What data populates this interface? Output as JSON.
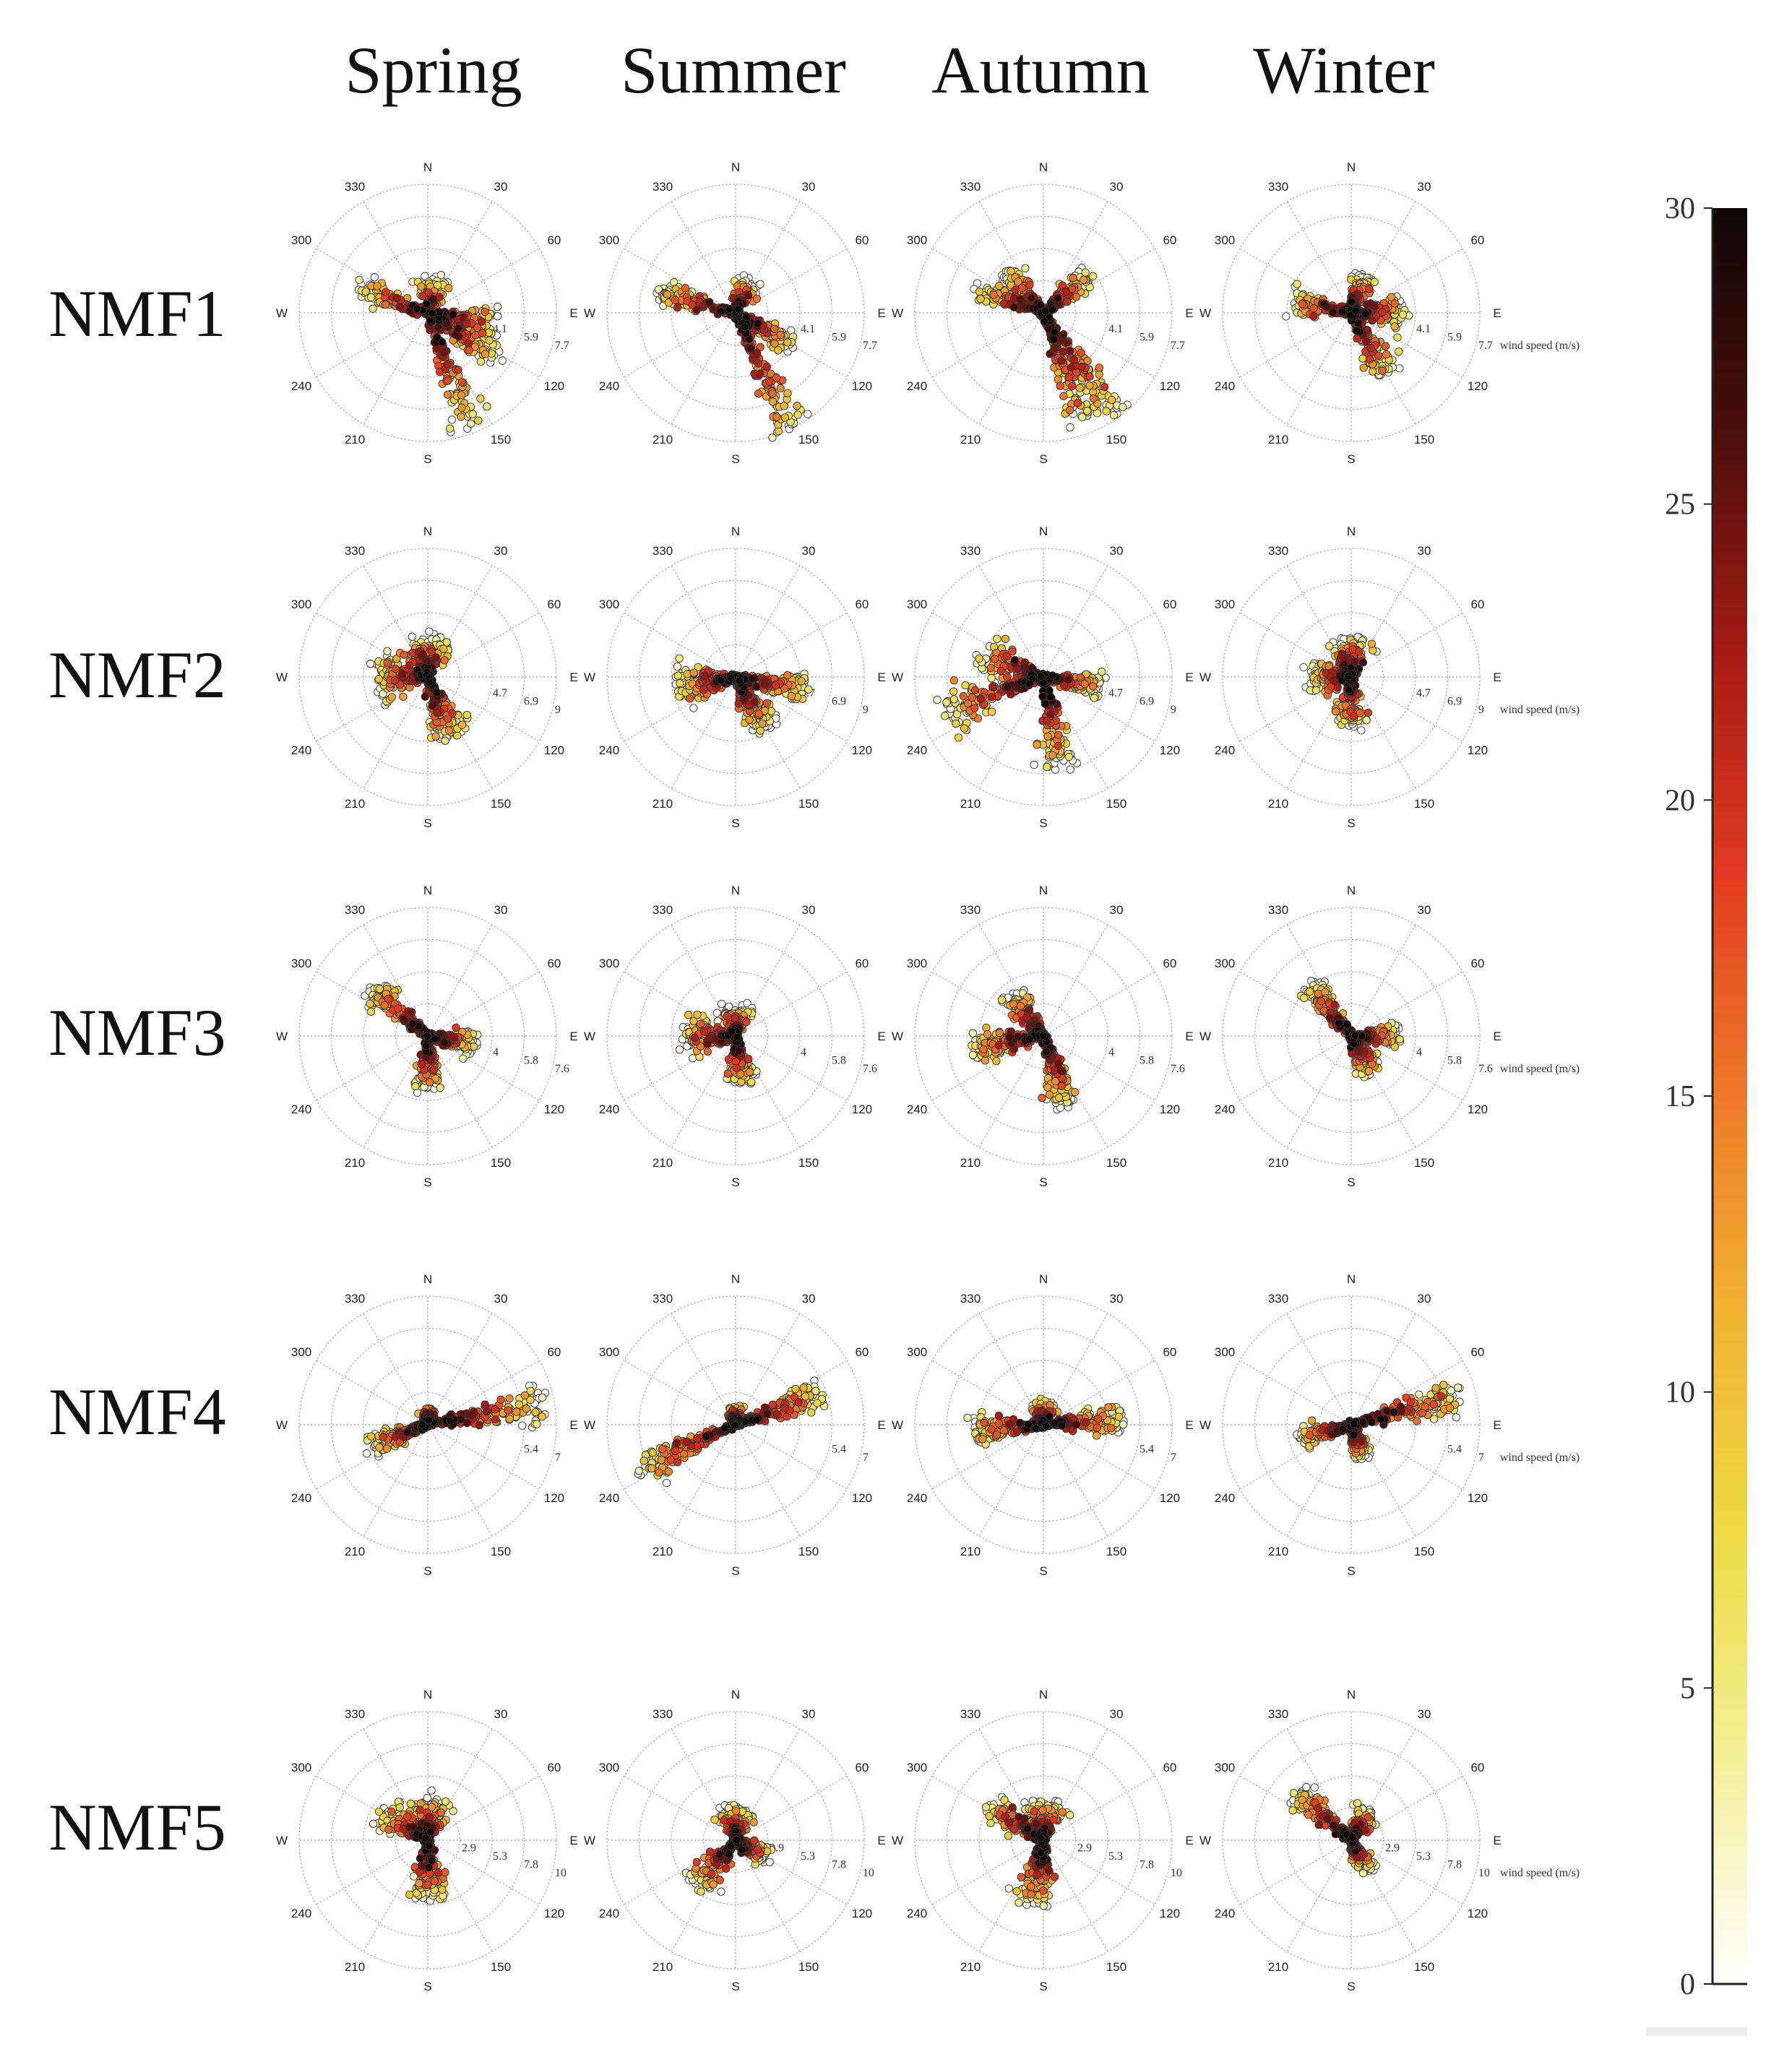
{
  "chart_data": {
    "type": "scatter",
    "subtype": "polar bivariate wind plots (concentration vs wind direction and speed)",
    "columns": [
      "Spring",
      "Summer",
      "Autumn",
      "Winter"
    ],
    "rows": [
      "NMF1",
      "NMF2",
      "NMF3",
      "NMF4",
      "NMF5"
    ],
    "direction_labels": [
      "N",
      "30",
      "60",
      "E",
      "120",
      "150",
      "S",
      "210",
      "240",
      "W",
      "300",
      "330"
    ],
    "wind_speed_unit": "wind speed (m/s)",
    "speed_rings": [
      [
        "4.1",
        "5.9",
        "7.7"
      ],
      [
        "4.7",
        "6.9",
        "9"
      ],
      [
        "4",
        "5.8",
        "7.6"
      ],
      [
        "5.4",
        "7"
      ],
      [
        "2.9",
        "5.3",
        "7.8",
        "10"
      ]
    ],
    "colorbar": {
      "min": 0,
      "max": 30,
      "ticks": [
        0,
        5,
        10,
        15,
        20,
        25,
        30
      ],
      "colors": [
        "#ffffff",
        "#f4f09a",
        "#eedc45",
        "#f0b430",
        "#ee7a28",
        "#e23a20",
        "#a61a14",
        "#4a0e0a",
        "#0e0705"
      ]
    },
    "lobes": [
      [
        [
          [
            100,
            0.55,
            0.18
          ],
          [
            120,
            0.62,
            0.2
          ],
          [
            160,
            0.95,
            0.12
          ],
          [
            290,
            0.55,
            0.16
          ],
          [
            10,
            0.25,
            0.35
          ]
        ],
        [
          [
            120,
            0.5,
            0.18
          ],
          [
            155,
            1.05,
            0.12
          ],
          [
            285,
            0.62,
            0.13
          ],
          [
            20,
            0.25,
            0.3
          ]
        ],
        [
          [
            145,
            0.95,
            0.13
          ],
          [
            160,
            0.9,
            0.12
          ],
          [
            290,
            0.55,
            0.14
          ],
          [
            50,
            0.45,
            0.18
          ],
          [
            320,
            0.4,
            0.2
          ]
        ],
        [
          [
            90,
            0.4,
            0.3
          ],
          [
            150,
            0.55,
            0.18
          ],
          [
            280,
            0.45,
            0.18
          ],
          [
            20,
            0.3,
            0.3
          ]
        ]
      ],
      [
        [
          [
            0,
            0.3,
            0.55
          ],
          [
            160,
            0.5,
            0.25
          ],
          [
            270,
            0.4,
            0.35
          ]
        ],
        [
          [
            100,
            0.55,
            0.18
          ],
          [
            150,
            0.45,
            0.22
          ],
          [
            260,
            0.45,
            0.3
          ]
        ],
        [
          [
            100,
            0.45,
            0.2
          ],
          [
            170,
            0.7,
            0.15
          ],
          [
            290,
            0.5,
            0.3
          ],
          [
            250,
            0.8,
            0.15
          ]
        ],
        [
          [
            0,
            0.3,
            0.5
          ],
          [
            180,
            0.35,
            0.25
          ],
          [
            270,
            0.3,
            0.35
          ]
        ]
      ],
      [
        [
          [
            310,
            0.55,
            0.15
          ],
          [
            100,
            0.35,
            0.2
          ],
          [
            180,
            0.4,
            0.22
          ]
        ],
        [
          [
            0,
            0.2,
            0.55
          ],
          [
            270,
            0.4,
            0.3
          ],
          [
            170,
            0.35,
            0.25
          ]
        ],
        [
          [
            320,
            0.4,
            0.22
          ],
          [
            160,
            0.55,
            0.18
          ],
          [
            260,
            0.55,
            0.2
          ]
        ],
        [
          [
            320,
            0.5,
            0.16
          ],
          [
            150,
            0.3,
            0.25
          ],
          [
            90,
            0.35,
            0.2
          ]
        ]
      ],
      [
        [
          [
            80,
            0.9,
            0.12
          ],
          [
            250,
            0.45,
            0.18
          ],
          [
            0,
            0.1,
            0.4
          ]
        ],
        [
          [
            70,
            0.7,
            0.13
          ],
          [
            245,
            0.8,
            0.12
          ],
          [
            0,
            0.1,
            0.4
          ]
        ],
        [
          [
            85,
            0.6,
            0.15
          ],
          [
            265,
            0.55,
            0.17
          ],
          [
            0,
            0.15,
            0.4
          ]
        ],
        [
          [
            75,
            0.85,
            0.12
          ],
          [
            255,
            0.4,
            0.17
          ],
          [
            160,
            0.25,
            0.25
          ]
        ]
      ],
      [
        [
          [
            0,
            0.3,
            0.45
          ],
          [
            180,
            0.45,
            0.25
          ],
          [
            300,
            0.4,
            0.25
          ]
        ],
        [
          [
            0,
            0.25,
            0.45
          ],
          [
            220,
            0.45,
            0.25
          ],
          [
            120,
            0.25,
            0.3
          ]
        ],
        [
          [
            0,
            0.3,
            0.45
          ],
          [
            190,
            0.5,
            0.25
          ],
          [
            300,
            0.5,
            0.2
          ]
        ],
        [
          [
            310,
            0.55,
            0.15
          ],
          [
            150,
            0.25,
            0.25
          ],
          [
            30,
            0.25,
            0.3
          ]
        ]
      ]
    ]
  }
}
